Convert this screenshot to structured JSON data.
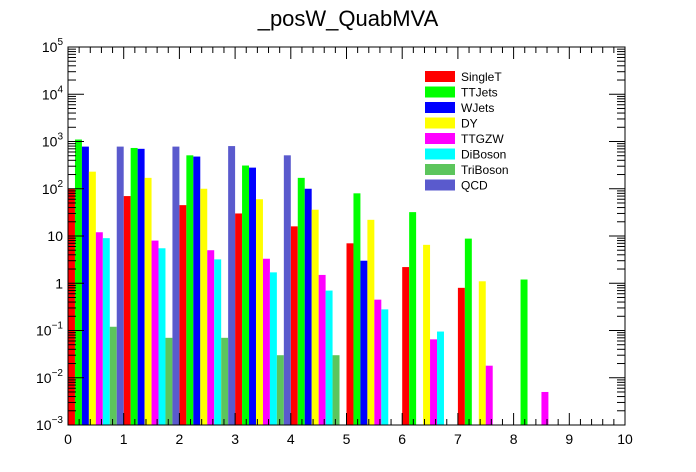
{
  "chart_data": {
    "type": "bar",
    "title": "_posW_QuabMVA",
    "xlabel": "",
    "ylabel": "",
    "log_y": true,
    "xlim": [
      0,
      10
    ],
    "ylim": [
      0.001,
      100000
    ],
    "bin_edges": [
      0,
      1,
      2,
      3,
      4,
      5,
      6,
      7,
      8,
      9,
      10
    ],
    "x_tick_labels": [
      "0",
      "1",
      "2",
      "3",
      "4",
      "5",
      "6",
      "7",
      "8",
      "9",
      "10"
    ],
    "y_ticks": [
      {
        "value": 0.001,
        "base": "10",
        "exp": "−3"
      },
      {
        "value": 0.01,
        "base": "10",
        "exp": "−2"
      },
      {
        "value": 0.1,
        "base": "10",
        "exp": "−1"
      },
      {
        "value": 1,
        "base": "1",
        "exp": ""
      },
      {
        "value": 10,
        "base": "10",
        "exp": ""
      },
      {
        "value": 100,
        "base": "10",
        "exp": "2"
      },
      {
        "value": 1000,
        "base": "10",
        "exp": "3"
      },
      {
        "value": 10000,
        "base": "10",
        "exp": "4"
      },
      {
        "value": 100000,
        "base": "10",
        "exp": "5"
      }
    ],
    "legend_position": "top-right",
    "series": [
      {
        "name": "SingleT",
        "color": "#ff0000",
        "values": [
          100,
          70,
          45,
          30,
          16,
          7,
          2.2,
          0.8,
          null,
          null
        ]
      },
      {
        "name": "TTJets",
        "color": "#00ff00",
        "values": [
          1100,
          730,
          510,
          310,
          170,
          80,
          32,
          8.8,
          1.2,
          null
        ]
      },
      {
        "name": "WJets",
        "color": "#0000ff",
        "values": [
          780,
          700,
          480,
          280,
          100,
          3,
          null,
          null,
          null,
          null
        ]
      },
      {
        "name": "DY",
        "color": "#ffff00",
        "values": [
          230,
          170,
          100,
          60,
          36,
          22,
          6.5,
          1.1,
          null,
          null
        ]
      },
      {
        "name": "TTGZW",
        "color": "#ff00ff",
        "values": [
          12,
          8,
          5,
          3.3,
          1.5,
          0.45,
          0.065,
          0.018,
          0.005,
          null
        ]
      },
      {
        "name": "DiBoson",
        "color": "#00ffff",
        "values": [
          9,
          5.5,
          3.2,
          1.7,
          0.7,
          0.28,
          0.095,
          null,
          null,
          null
        ]
      },
      {
        "name": "TriBoson",
        "color": "#5cc55c",
        "values": [
          0.12,
          0.07,
          0.07,
          0.03,
          0.03,
          null,
          null,
          null,
          null,
          null
        ]
      },
      {
        "name": "QCD",
        "color": "#5a5acd",
        "values": [
          780,
          780,
          800,
          510,
          null,
          null,
          null,
          null,
          null,
          null
        ]
      }
    ]
  }
}
